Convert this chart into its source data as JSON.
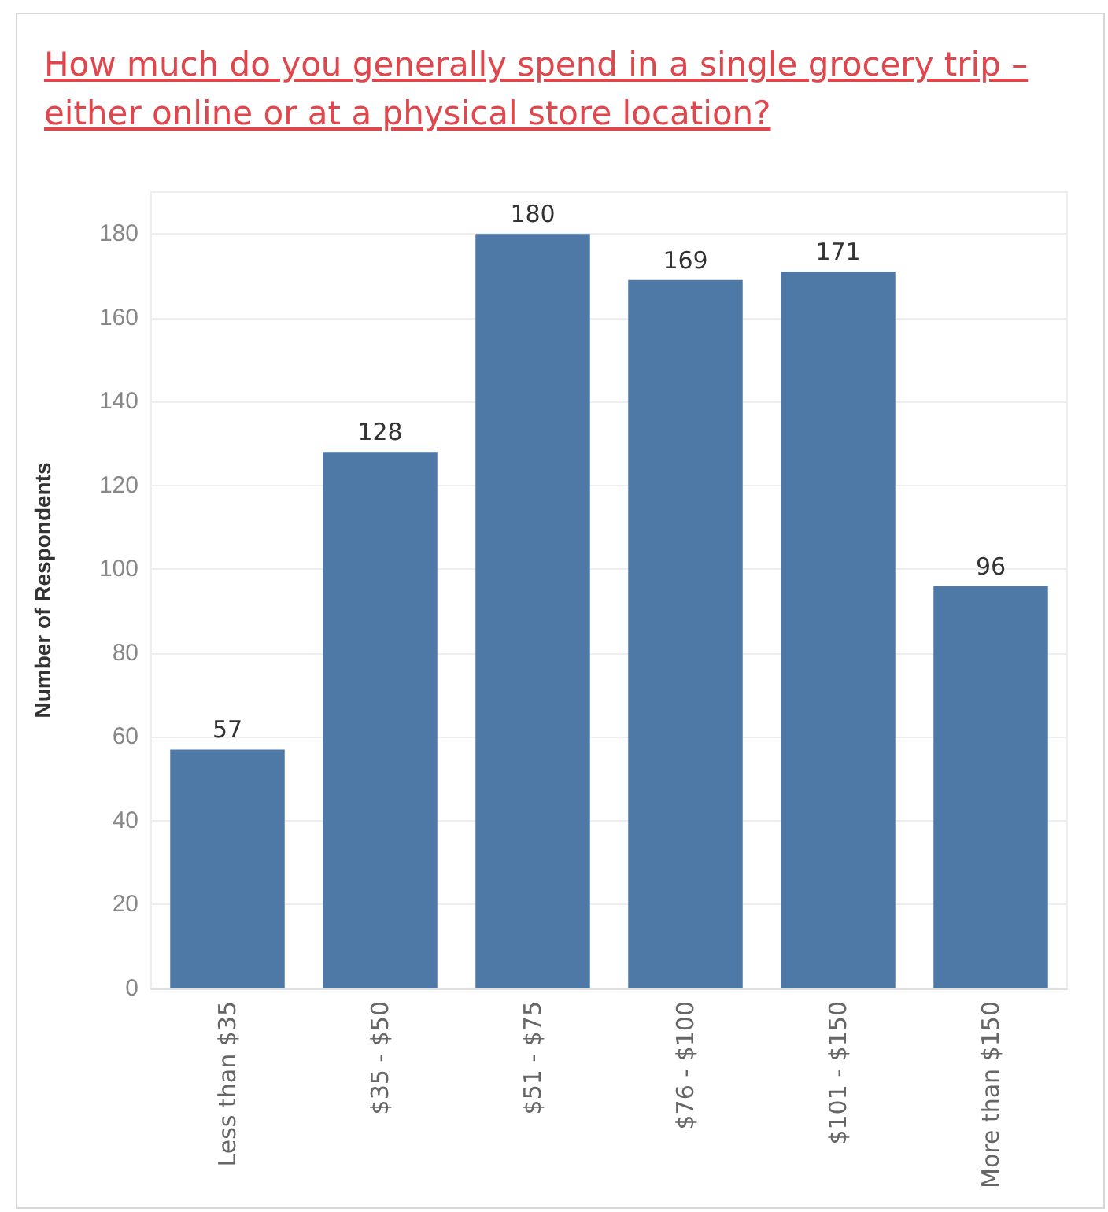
{
  "chart_data": {
    "type": "bar",
    "title": "How much do you generally spend in a single grocery trip –\neither online or at a physical store location?",
    "ylabel": "Number of Respondents",
    "categories": [
      "Less than $35",
      "$35 - $50",
      "$51 - $75",
      "$76 - $100",
      "$101 - $150",
      "More than $150"
    ],
    "values": [
      57,
      128,
      180,
      169,
      171,
      96
    ],
    "color": "#4e79a7",
    "ylim": [
      0,
      190
    ],
    "yticks": [
      0,
      20,
      40,
      60,
      80,
      100,
      120,
      140,
      160,
      180
    ],
    "grid": "y",
    "data_labels": true
  }
}
